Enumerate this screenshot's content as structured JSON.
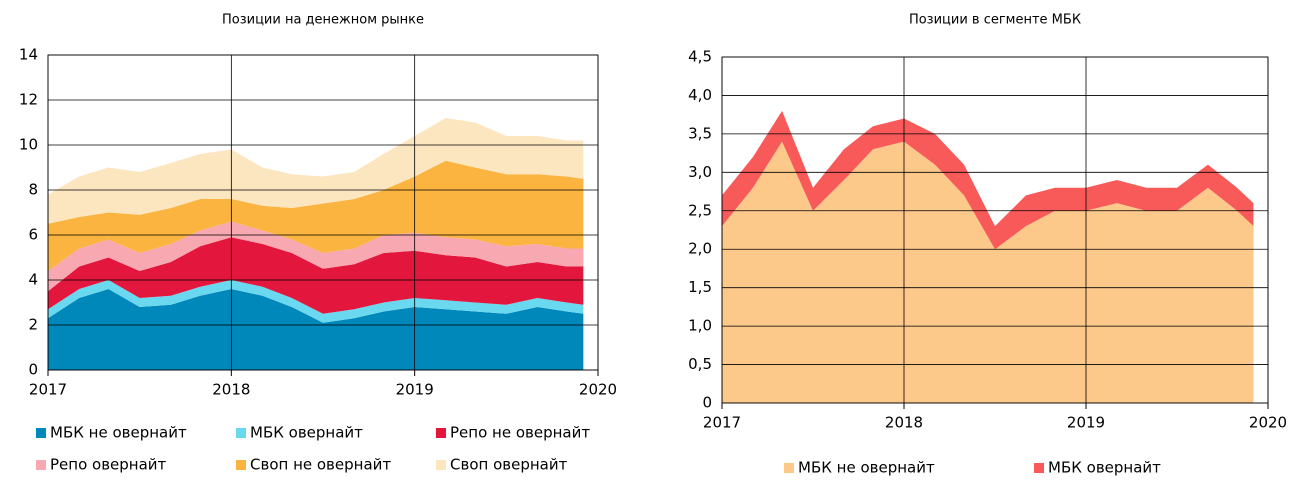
{
  "chart_data": [
    {
      "type": "area",
      "stacked": true,
      "title": "Позиции на денежном рынке",
      "x": [
        2017.0,
        2017.17,
        2017.33,
        2017.5,
        2017.67,
        2017.83,
        2018.0,
        2018.17,
        2018.33,
        2018.5,
        2018.67,
        2018.83,
        2019.0,
        2019.17,
        2019.33,
        2019.5,
        2019.67,
        2019.83,
        2019.92
      ],
      "xlim": [
        2017,
        2020
      ],
      "xticks": [
        2017,
        2018,
        2019,
        2020
      ],
      "ylim": [
        0,
        14
      ],
      "yticks": [
        0,
        2,
        4,
        6,
        8,
        10,
        12,
        14
      ],
      "grid": true,
      "series": [
        {
          "name": "МБК не овернайт",
          "color": "#0088bb",
          "values": [
            2.3,
            3.2,
            3.6,
            2.8,
            2.9,
            3.3,
            3.6,
            3.3,
            2.8,
            2.1,
            2.3,
            2.6,
            2.8,
            2.7,
            2.6,
            2.5,
            2.8,
            2.6,
            2.5
          ]
        },
        {
          "name": "МБК овернайт",
          "color": "#6ad8ee",
          "values": [
            0.4,
            0.4,
            0.4,
            0.4,
            0.4,
            0.4,
            0.4,
            0.4,
            0.4,
            0.4,
            0.4,
            0.4,
            0.4,
            0.4,
            0.4,
            0.4,
            0.4,
            0.4,
            0.4
          ]
        },
        {
          "name": "Репо не овернайт",
          "color": "#e3173e",
          "values": [
            0.8,
            1.0,
            1.0,
            1.2,
            1.5,
            1.8,
            1.9,
            1.9,
            2.0,
            2.0,
            2.0,
            2.2,
            2.1,
            2.0,
            2.0,
            1.7,
            1.6,
            1.6,
            1.7
          ]
        },
        {
          "name": "Репо овернайт",
          "color": "#f7a8b0",
          "values": [
            0.9,
            0.8,
            0.8,
            0.8,
            0.8,
            0.7,
            0.7,
            0.6,
            0.6,
            0.7,
            0.7,
            0.8,
            0.8,
            0.8,
            0.8,
            0.9,
            0.8,
            0.8,
            0.8
          ]
        },
        {
          "name": "Своп не овернайт",
          "color": "#fbb440",
          "values": [
            2.1,
            1.4,
            1.2,
            1.7,
            1.6,
            1.4,
            1.0,
            1.1,
            1.4,
            2.2,
            2.2,
            2.0,
            2.5,
            3.4,
            3.2,
            3.2,
            3.1,
            3.2,
            3.1
          ]
        },
        {
          "name": "Своп овернайт",
          "color": "#fce6c0",
          "values": [
            1.3,
            1.8,
            2.0,
            1.9,
            2.0,
            2.0,
            2.2,
            1.7,
            1.5,
            1.2,
            1.2,
            1.6,
            1.8,
            1.9,
            2.0,
            1.7,
            1.7,
            1.6,
            1.7
          ]
        }
      ]
    },
    {
      "type": "area",
      "stacked": true,
      "title": "Позиции в сегменте МБК",
      "x": [
        2017.0,
        2017.17,
        2017.33,
        2017.5,
        2017.67,
        2017.83,
        2018.0,
        2018.17,
        2018.33,
        2018.5,
        2018.67,
        2018.83,
        2019.0,
        2019.17,
        2019.33,
        2019.5,
        2019.67,
        2019.83,
        2019.92
      ],
      "xlim": [
        2017,
        2020
      ],
      "xticks": [
        2017,
        2018,
        2019,
        2020
      ],
      "ylim": [
        0,
        4.5
      ],
      "yticks": [
        0,
        {
          "value": 0.5,
          "label": "0,5"
        },
        {
          "value": 1.0,
          "label": "1,0"
        },
        {
          "value": 1.5,
          "label": "1,5"
        },
        {
          "value": 2.0,
          "label": "2,0"
        },
        {
          "value": 2.5,
          "label": "2,5"
        },
        {
          "value": 3.0,
          "label": "3,0"
        },
        {
          "value": 3.5,
          "label": "3,5"
        },
        {
          "value": 4.0,
          "label": "4,0"
        },
        {
          "value": 4.5,
          "label": "4,5"
        }
      ],
      "grid": true,
      "series": [
        {
          "name": "МБК не овернайт",
          "color": "#fcc98a",
          "values": [
            2.3,
            2.8,
            3.4,
            2.5,
            2.9,
            3.3,
            3.4,
            3.1,
            2.7,
            2.0,
            2.3,
            2.5,
            2.5,
            2.6,
            2.5,
            2.5,
            2.8,
            2.5,
            2.3
          ]
        },
        {
          "name": "МБК овернайт",
          "color": "#f85a5a",
          "values": [
            0.4,
            0.4,
            0.4,
            0.3,
            0.4,
            0.3,
            0.3,
            0.4,
            0.4,
            0.3,
            0.4,
            0.3,
            0.3,
            0.3,
            0.3,
            0.3,
            0.3,
            0.3,
            0.3
          ]
        }
      ]
    }
  ]
}
